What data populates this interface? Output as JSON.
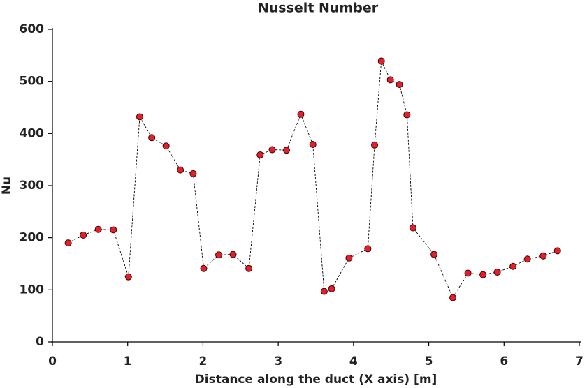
{
  "chart_data": {
    "type": "line",
    "title": "Nusselt Number",
    "xlabel": "Distance along the duct (X axis) [m]",
    "ylabel": "Nu",
    "x": [
      0.21,
      0.41,
      0.61,
      0.81,
      1.01,
      1.16,
      1.32,
      1.51,
      1.7,
      1.87,
      2.01,
      2.21,
      2.4,
      2.61,
      2.76,
      2.92,
      3.11,
      3.3,
      3.46,
      3.61,
      3.71,
      3.94,
      4.19,
      4.28,
      4.37,
      4.49,
      4.61,
      4.71,
      4.79,
      5.07,
      5.32,
      5.52,
      5.72,
      5.91,
      6.12,
      6.31,
      6.52,
      6.71
    ],
    "series": [
      {
        "name": "Nu",
        "color": "#e0202a",
        "values": [
          190,
          205,
          216,
          215,
          125,
          432,
          392,
          376,
          330,
          323,
          141,
          167,
          168,
          141,
          359,
          369,
          368,
          437,
          379,
          97,
          102,
          161,
          179,
          378,
          539,
          503,
          494,
          436,
          219,
          168,
          85,
          132,
          129,
          134,
          145,
          159,
          165,
          175
        ]
      }
    ],
    "xlim": [
      0,
      7
    ],
    "xticks": [
      0,
      1,
      2,
      3,
      4,
      5,
      6,
      7
    ],
    "ylim": [
      0,
      600
    ],
    "yticks": [
      0,
      100,
      200,
      300,
      400,
      500,
      600
    ]
  }
}
